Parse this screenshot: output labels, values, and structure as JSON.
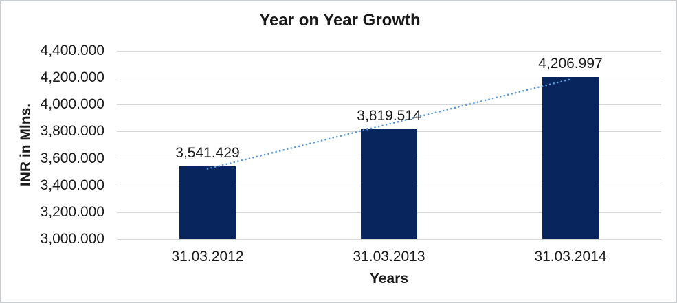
{
  "chart_data": {
    "type": "bar",
    "title": "Year on Year Growth",
    "xlabel": "Years",
    "ylabel": "INR in Mlns.",
    "categories": [
      "31.03.2012",
      "31.03.2013",
      "31.03.2014"
    ],
    "values": [
      3541.429,
      3819.514,
      4206.997
    ],
    "data_labels": [
      "3,541.429",
      "3,819.514",
      "4,206.997"
    ],
    "ylim": [
      3000,
      4400
    ],
    "y_tick_step": 200,
    "y_ticks": [
      {
        "label": "4,400.000",
        "value": 4400
      },
      {
        "label": "4,200.000",
        "value": 4200
      },
      {
        "label": "4,000.000",
        "value": 4000
      },
      {
        "label": "3,800.000",
        "value": 3800
      },
      {
        "label": "3,600.000",
        "value": 3600
      },
      {
        "label": "3,400.000",
        "value": 3400
      },
      {
        "label": "3,200.000",
        "value": 3200
      },
      {
        "label": "3,000.000",
        "value": 3000
      }
    ],
    "grid": true,
    "legend": "none",
    "trendline": {
      "type": "linear",
      "style": "dotted-round",
      "color": "#5B9BD5"
    },
    "colors": {
      "bar": "#08255E",
      "trendline": "#5B9BD5",
      "gridline": "#D6D6D6",
      "text": "#1A1A1A",
      "border": "#C9CDD0"
    }
  }
}
